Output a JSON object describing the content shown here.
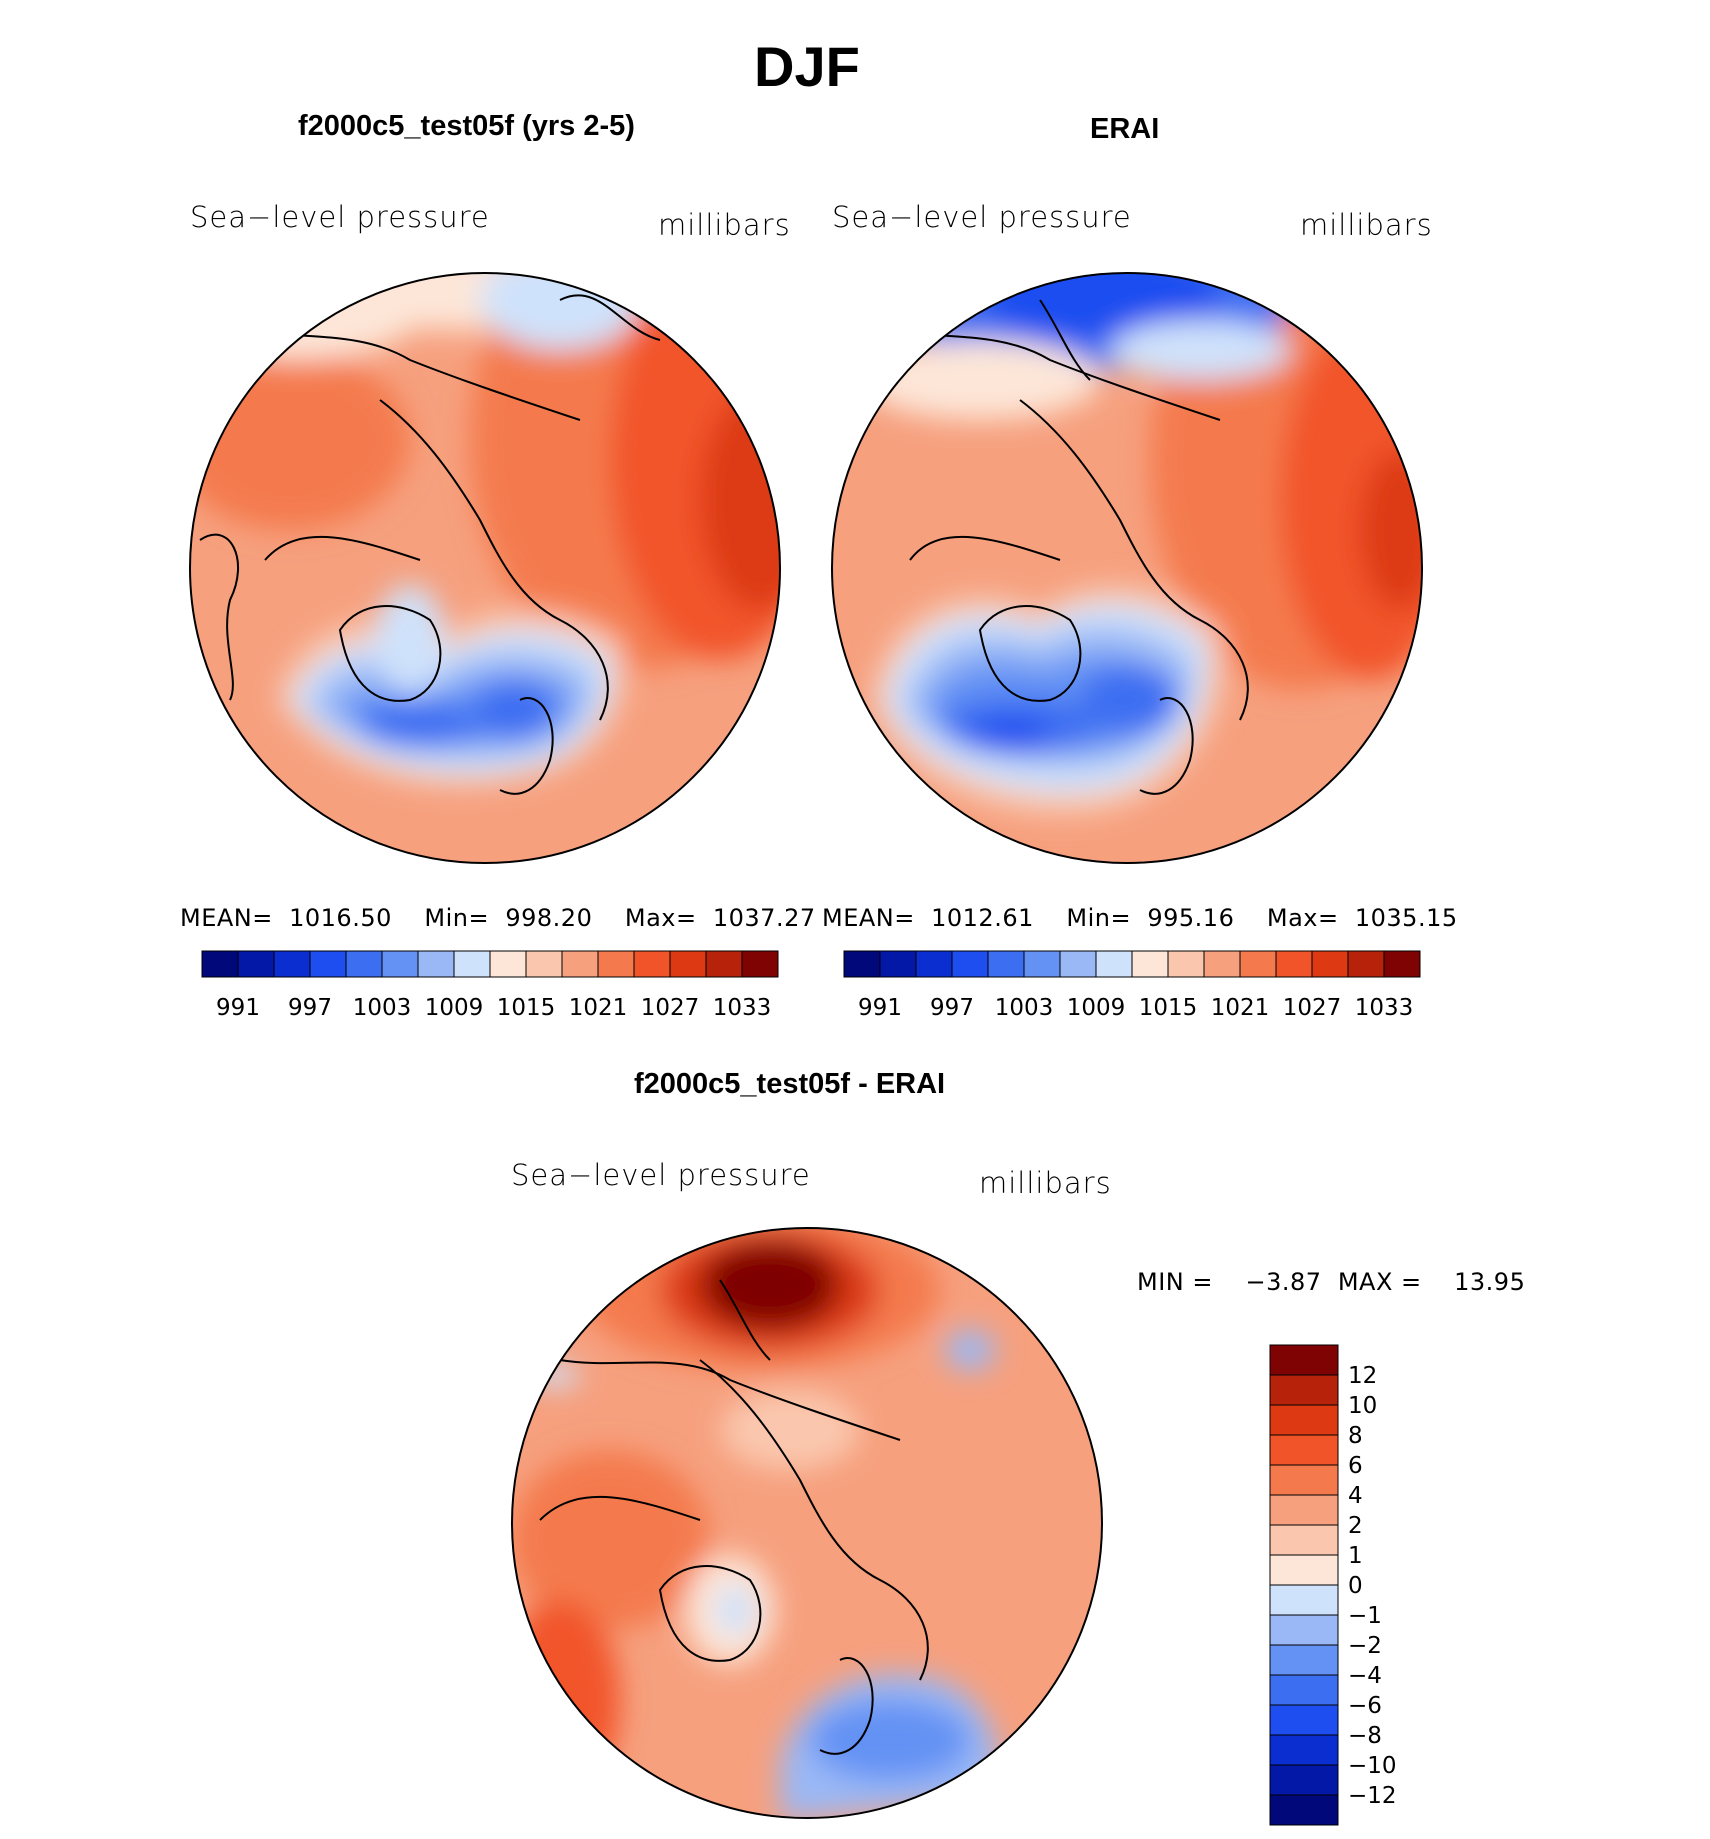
{
  "figure": {
    "season": "DJF"
  },
  "panels": [
    {
      "id": "model",
      "title": "f2000c5_test05f (yrs 2-5)",
      "variable": "Sea−level pressure",
      "units": "millibars",
      "stats": {
        "mean_label": "MEAN=",
        "mean": "1016.50",
        "min_label": "Min=",
        "min": "998.20",
        "max_label": "Max=",
        "max": "1037.27"
      }
    },
    {
      "id": "obs",
      "title": "ERAI",
      "variable": "Sea−level pressure",
      "units": "millibars",
      "stats": {
        "mean_label": "MEAN=",
        "mean": "1012.61",
        "min_label": "Min=",
        "min": "995.16",
        "max_label": "Max=",
        "max": "1035.15"
      }
    },
    {
      "id": "diff",
      "title": "f2000c5_test05f - ERAI",
      "variable": "Sea−level pressure",
      "units": "millibars",
      "stats": {
        "min_label": "MIN =",
        "min": "−3.87",
        "max_label": "MAX =",
        "max": "13.95"
      }
    }
  ],
  "abs_colorbar": {
    "colors": [
      "#00087a",
      "#0418a8",
      "#0a2ed0",
      "#1f4ef0",
      "#3c6ef2",
      "#6492f4",
      "#9ab8f6",
      "#cfe2fb",
      "#fde6d8",
      "#fac7ae",
      "#f6a07e",
      "#f47a4e",
      "#f2542a",
      "#dd3a14",
      "#b7230a",
      "#7f0303"
    ],
    "ticks": [
      "991",
      "997",
      "1003",
      "1009",
      "1015",
      "1021",
      "1027",
      "1033"
    ]
  },
  "diff_colorbar": {
    "colors": [
      "#7f0303",
      "#b7230a",
      "#dd3a14",
      "#f2542a",
      "#f47a4e",
      "#f6a07e",
      "#fac7ae",
      "#fde6d8",
      "#cfe2fb",
      "#9ab8f6",
      "#6492f4",
      "#3c6ef2",
      "#1f4ef0",
      "#0a2ed0",
      "#0418a8",
      "#00087a"
    ],
    "ticks": [
      "12",
      "10",
      "8",
      "6",
      "4",
      "2",
      "1",
      "0",
      "−1",
      "−2",
      "−4",
      "−6",
      "−8",
      "−10",
      "−12"
    ]
  }
}
